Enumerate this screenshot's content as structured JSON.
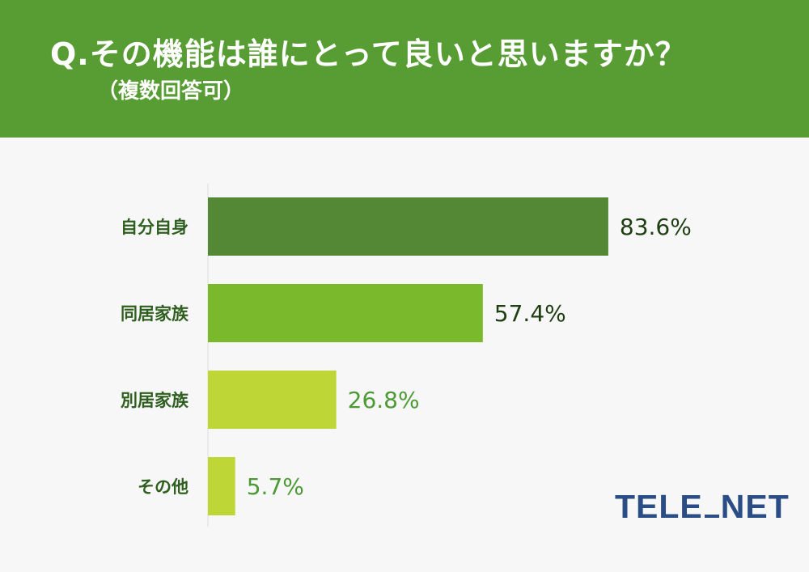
{
  "header": {
    "title": "Q.その機能は誰にとって良いと思いますか？",
    "subtitle": "（複数回答可）"
  },
  "chart_data": {
    "type": "bar",
    "orientation": "horizontal",
    "categories": [
      "自分自身",
      "同居家族",
      "別居家族",
      "その他"
    ],
    "values": [
      83.6,
      57.4,
      26.8,
      5.7
    ],
    "value_labels": [
      "83.6%",
      "57.4%",
      "26.8%",
      "5.7%"
    ],
    "unit": "%",
    "xlim": [
      0,
      100
    ],
    "bar_colors": [
      "#548835",
      "#7ab82c",
      "#bfd637",
      "#bfd637"
    ],
    "label_colors": [
      "#1f3f12",
      "#1f3f12",
      "#4d9a35",
      "#4d9a35"
    ],
    "category_label_color": "#2f5f1f",
    "grid": false,
    "legend": false
  },
  "colors": {
    "header_bg": "#589c34",
    "background": "#f7f7f7",
    "logo": "#2b4d86"
  },
  "logo": {
    "text": "TELE.NET"
  }
}
